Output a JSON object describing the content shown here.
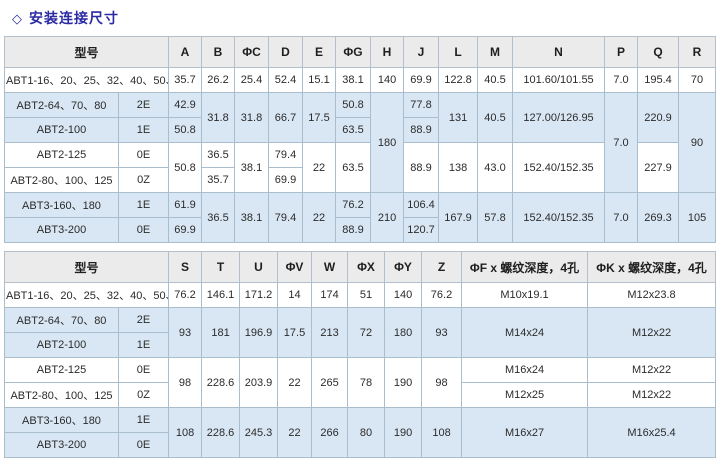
{
  "page": {
    "title_prefix": "◇",
    "title_text": "安装连接尺寸"
  },
  "colors": {
    "title": "#2a2aa4",
    "header_bg": "#ebebeb",
    "row_blue_bg": "#d9e7f4",
    "row_white_bg": "#ffffff",
    "border": "#a9bdcd"
  },
  "table1": {
    "header": [
      {
        "t": "型号",
        "colspan": 2
      },
      {
        "t": "A"
      },
      {
        "t": "B"
      },
      {
        "t": "ΦC"
      },
      {
        "t": "D"
      },
      {
        "t": "E"
      },
      {
        "t": "ΦG"
      },
      {
        "t": "H"
      },
      {
        "t": "J"
      },
      {
        "t": "L"
      },
      {
        "t": "M"
      },
      {
        "t": "N"
      },
      {
        "t": "P"
      },
      {
        "t": "Q"
      },
      {
        "t": "R"
      }
    ],
    "rows": [
      {
        "band": "white",
        "cells": [
          {
            "t": "ABT1-16、20、25、32、40、50、64",
            "colspan": 2,
            "cls": "model"
          },
          {
            "t": "35.7"
          },
          {
            "t": "26.2"
          },
          {
            "t": "25.4"
          },
          {
            "t": "52.4"
          },
          {
            "t": "15.1"
          },
          {
            "t": "38.1"
          },
          {
            "t": "140"
          },
          {
            "t": "69.9"
          },
          {
            "t": "122.8"
          },
          {
            "t": "40.5"
          },
          {
            "t": "101.60/101.55"
          },
          {
            "t": "7.0"
          },
          {
            "t": "195.4"
          },
          {
            "t": "70"
          }
        ]
      },
      {
        "band": "blue",
        "cells": [
          {
            "t": "ABT2-64、70、80",
            "cls": "model"
          },
          {
            "t": "2E"
          },
          {
            "t": "42.9"
          },
          {
            "t": "31.8",
            "rowspan": 2
          },
          {
            "t": "31.8",
            "rowspan": 2
          },
          {
            "t": "66.7",
            "rowspan": 2
          },
          {
            "t": "17.5",
            "rowspan": 2
          },
          {
            "t": "50.8"
          },
          {
            "t": "180",
            "rowspan": 4
          },
          {
            "t": "77.8"
          },
          {
            "t": "131",
            "rowspan": 2
          },
          {
            "t": "40.5",
            "rowspan": 2
          },
          {
            "t": "127.00/126.95",
            "rowspan": 2
          },
          {
            "t": "7.0",
            "rowspan": 4
          },
          {
            "t": "220.9",
            "rowspan": 2
          },
          {
            "t": "90",
            "rowspan": 4
          }
        ]
      },
      {
        "band": "blue",
        "cells": [
          {
            "t": "ABT2-100",
            "cls": "model"
          },
          {
            "t": "1E"
          },
          {
            "t": "50.8"
          },
          {
            "t": "63.5"
          },
          {
            "t": "88.9"
          }
        ]
      },
      {
        "band": "white",
        "cells": [
          {
            "t": "ABT2-125",
            "cls": "model"
          },
          {
            "t": "0E"
          },
          {
            "t": "50.8",
            "rowspan": 2
          },
          {
            "t": "36.5"
          },
          {
            "t": "38.1",
            "rowspan": 2
          },
          {
            "t": "79.4"
          },
          {
            "t": "22",
            "rowspan": 2
          },
          {
            "t": "63.5",
            "rowspan": 2
          },
          {
            "t": "88.9",
            "rowspan": 2
          },
          {
            "t": "138",
            "rowspan": 2
          },
          {
            "t": "43.0",
            "rowspan": 2
          },
          {
            "t": "152.40/152.35",
            "rowspan": 2
          },
          {
            "t": "227.9",
            "rowspan": 2
          }
        ]
      },
      {
        "band": "white",
        "cells": [
          {
            "t": "ABT2-80、100、125",
            "cls": "model"
          },
          {
            "t": "0Z"
          },
          {
            "t": "35.7"
          },
          {
            "t": "69.9"
          }
        ]
      },
      {
        "band": "blue",
        "cells": [
          {
            "t": "ABT3-160、180",
            "cls": "model"
          },
          {
            "t": "1E"
          },
          {
            "t": "61.9"
          },
          {
            "t": "36.5",
            "rowspan": 2
          },
          {
            "t": "38.1",
            "rowspan": 2
          },
          {
            "t": "79.4",
            "rowspan": 2
          },
          {
            "t": "22",
            "rowspan": 2
          },
          {
            "t": "76.2"
          },
          {
            "t": "210",
            "rowspan": 2
          },
          {
            "t": "106.4"
          },
          {
            "t": "167.9",
            "rowspan": 2
          },
          {
            "t": "57.8",
            "rowspan": 2
          },
          {
            "t": "152.40/152.35",
            "rowspan": 2
          },
          {
            "t": "7.0",
            "rowspan": 2
          },
          {
            "t": "269.3",
            "rowspan": 2
          },
          {
            "t": "105",
            "rowspan": 2
          }
        ]
      },
      {
        "band": "blue",
        "cells": [
          {
            "t": "ABT3-200",
            "cls": "model"
          },
          {
            "t": "0E"
          },
          {
            "t": "69.9"
          },
          {
            "t": "88.9"
          },
          {
            "t": "120.7"
          }
        ]
      }
    ]
  },
  "table2": {
    "header": [
      {
        "t": "型号",
        "colspan": 2
      },
      {
        "t": "S"
      },
      {
        "t": "T"
      },
      {
        "t": "U"
      },
      {
        "t": "ΦV"
      },
      {
        "t": "W"
      },
      {
        "t": "ΦX"
      },
      {
        "t": "ΦY"
      },
      {
        "t": "Z"
      },
      {
        "t": "ΦF x 螺纹深度，4孔"
      },
      {
        "t": "ΦK x 螺纹深度，4孔"
      }
    ],
    "rows": [
      {
        "band": "white",
        "cells": [
          {
            "t": "ABT1-16、20、25、32、40、50、64",
            "colspan": 2,
            "cls": "model"
          },
          {
            "t": "76.2"
          },
          {
            "t": "146.1"
          },
          {
            "t": "171.2"
          },
          {
            "t": "14"
          },
          {
            "t": "174"
          },
          {
            "t": "51"
          },
          {
            "t": "140"
          },
          {
            "t": "76.2"
          },
          {
            "t": "M10x19.1"
          },
          {
            "t": "M12x23.8"
          }
        ]
      },
      {
        "band": "blue",
        "cells": [
          {
            "t": "ABT2-64、70、80",
            "cls": "model"
          },
          {
            "t": "2E"
          },
          {
            "t": "93",
            "rowspan": 2
          },
          {
            "t": "181",
            "rowspan": 2
          },
          {
            "t": "196.9",
            "rowspan": 2
          },
          {
            "t": "17.5",
            "rowspan": 2
          },
          {
            "t": "213",
            "rowspan": 2
          },
          {
            "t": "72",
            "rowspan": 2
          },
          {
            "t": "180",
            "rowspan": 2
          },
          {
            "t": "93",
            "rowspan": 2
          },
          {
            "t": "M14x24",
            "rowspan": 2
          },
          {
            "t": "M12x22",
            "rowspan": 2
          }
        ]
      },
      {
        "band": "blue",
        "cells": [
          {
            "t": "ABT2-100",
            "cls": "model"
          },
          {
            "t": "1E"
          }
        ]
      },
      {
        "band": "white",
        "cells": [
          {
            "t": "ABT2-125",
            "cls": "model"
          },
          {
            "t": "0E"
          },
          {
            "t": "98",
            "rowspan": 2
          },
          {
            "t": "228.6",
            "rowspan": 2
          },
          {
            "t": "203.9",
            "rowspan": 2
          },
          {
            "t": "22",
            "rowspan": 2
          },
          {
            "t": "265",
            "rowspan": 2
          },
          {
            "t": "78",
            "rowspan": 2
          },
          {
            "t": "190",
            "rowspan": 2
          },
          {
            "t": "98",
            "rowspan": 2
          },
          {
            "t": "M16x24"
          },
          {
            "t": "M12x22"
          }
        ]
      },
      {
        "band": "white",
        "cells": [
          {
            "t": "ABT2-80、100、125",
            "cls": "model"
          },
          {
            "t": "0Z"
          },
          {
            "t": "M12x25"
          },
          {
            "t": "M12x22"
          }
        ]
      },
      {
        "band": "blue",
        "cells": [
          {
            "t": "ABT3-160、180",
            "cls": "model"
          },
          {
            "t": "1E"
          },
          {
            "t": "108",
            "rowspan": 2
          },
          {
            "t": "228.6",
            "rowspan": 2
          },
          {
            "t": "245.3",
            "rowspan": 2
          },
          {
            "t": "22",
            "rowspan": 2
          },
          {
            "t": "266",
            "rowspan": 2
          },
          {
            "t": "80",
            "rowspan": 2
          },
          {
            "t": "190",
            "rowspan": 2
          },
          {
            "t": "108",
            "rowspan": 2
          },
          {
            "t": "M16x27",
            "rowspan": 2
          },
          {
            "t": "M16x25.4",
            "rowspan": 2
          }
        ]
      },
      {
        "band": "blue",
        "cells": [
          {
            "t": "ABT3-200",
            "cls": "model"
          },
          {
            "t": "0E"
          }
        ]
      }
    ]
  }
}
